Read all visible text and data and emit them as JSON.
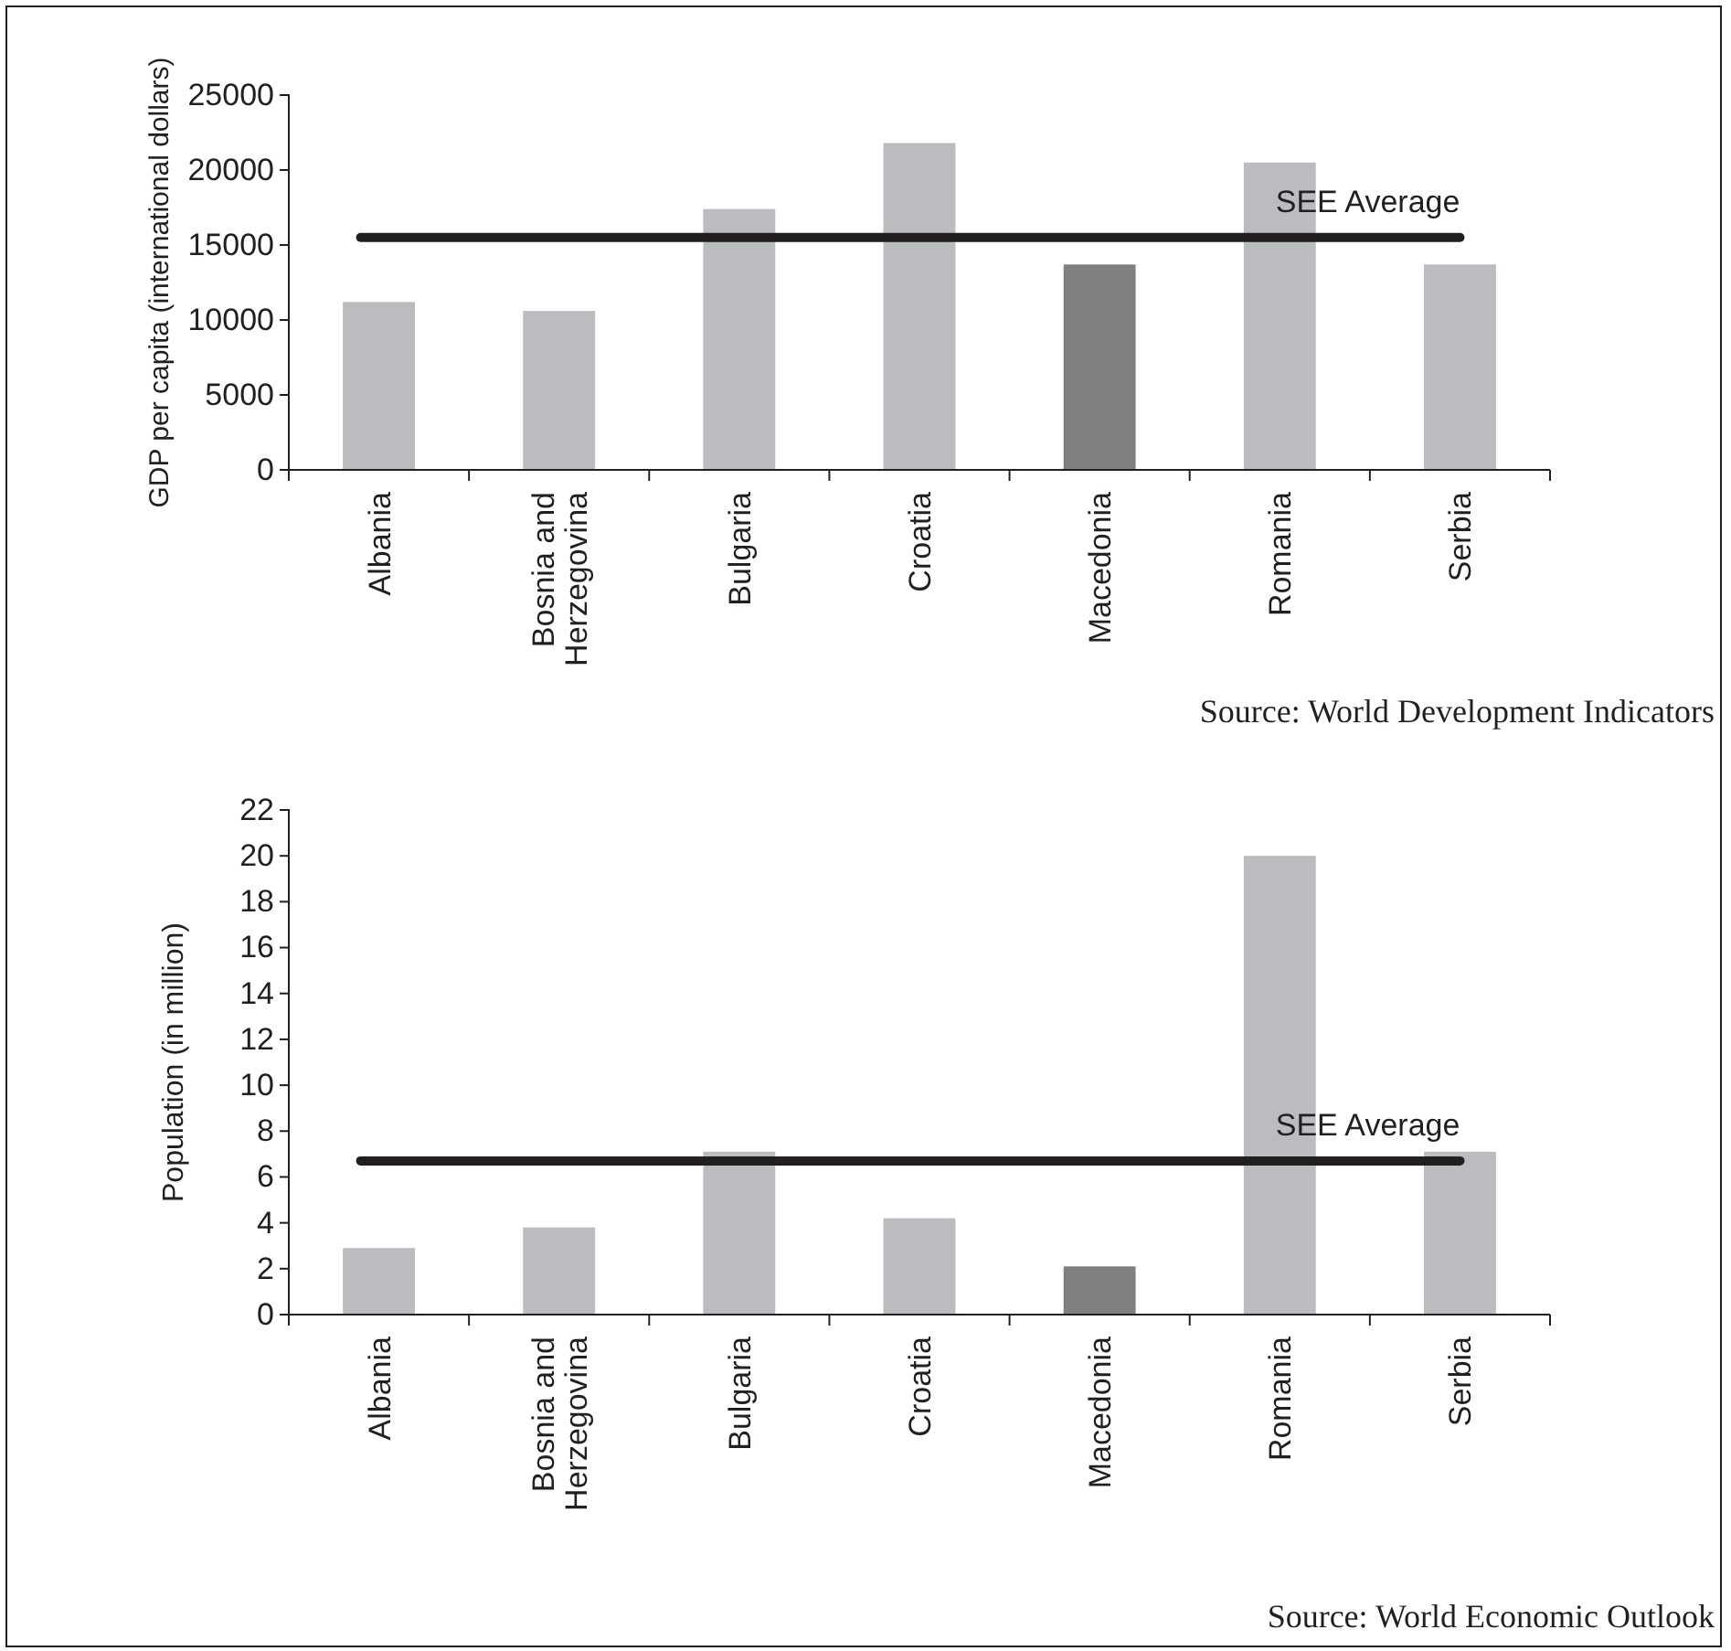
{
  "chart_data": [
    {
      "type": "bar",
      "ylabel": "GDP per capita (international dollars)",
      "categories": [
        "Albania",
        "Bosnia and Herzegovina",
        "Bulgaria",
        "Croatia",
        "Macedonia",
        "Romania",
        "Serbia"
      ],
      "values": [
        11200,
        10600,
        17400,
        21800,
        13700,
        20500,
        13700
      ],
      "colors": [
        "#bbbcbf",
        "#bbbcbf",
        "#bbbcbf",
        "#bbbcbf",
        "#808080",
        "#bbbcbf",
        "#bbbcbf"
      ],
      "ylim": [
        0,
        25000
      ],
      "yticks": [
        0,
        5000,
        10000,
        15000,
        20000,
        25000
      ],
      "grid": false,
      "ref_lines": [
        {
          "axis": "y",
          "value": 15500,
          "label": "SEE Average",
          "color": "#231f20"
        }
      ],
      "annotations": [
        "Source: World Development Indicators"
      ]
    },
    {
      "type": "bar",
      "ylabel": "Population (in million)",
      "categories": [
        "Albania",
        "Bosnia and Herzegovina",
        "Bulgaria",
        "Croatia",
        "Macedonia",
        "Romania",
        "Serbia"
      ],
      "values": [
        2.9,
        3.8,
        7.1,
        4.2,
        2.1,
        20.0,
        7.1
      ],
      "colors": [
        "#bbbcbf",
        "#bbbcbf",
        "#bbbcbf",
        "#bbbcbf",
        "#808080",
        "#bbbcbf",
        "#bbbcbf"
      ],
      "ylim": [
        0,
        22
      ],
      "yticks": [
        0,
        2,
        4,
        6,
        8,
        10,
        12,
        14,
        16,
        18,
        20,
        22
      ],
      "grid": false,
      "ref_lines": [
        {
          "axis": "y",
          "value": 6.7,
          "label": "SEE Average",
          "color": "#231f20"
        }
      ],
      "annotations": [
        "Source: World Economic Outlook"
      ]
    }
  ]
}
